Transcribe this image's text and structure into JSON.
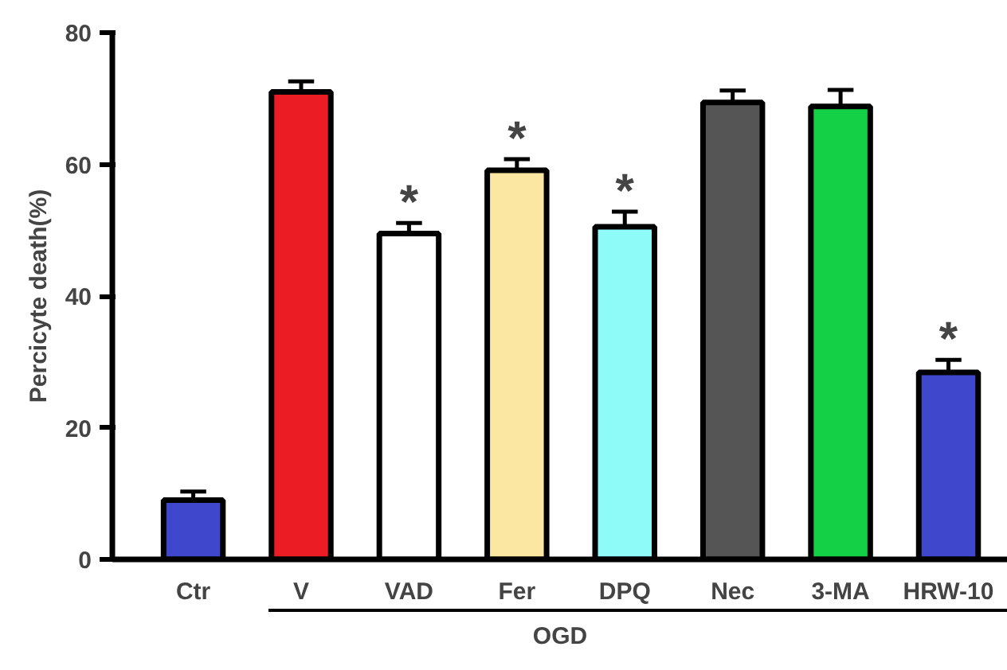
{
  "chart_data": {
    "type": "bar",
    "ylabel": "Percicyte death(%)",
    "categories": [
      "Ctr",
      "V",
      "VAD",
      "Fer",
      "DPQ",
      "Nec",
      "3-MA",
      "HRW-10"
    ],
    "values": [
      9.0,
      71.0,
      49.5,
      59.1,
      50.5,
      69.4,
      68.8,
      28.4
    ],
    "errors": [
      1.3,
      1.6,
      1.6,
      1.7,
      2.3,
      1.8,
      2.5,
      1.9
    ],
    "colors": [
      "#3f48cc",
      "#ec1c24",
      "#ffffff",
      "#fbe7a1",
      "#8ffbf8",
      "#555555",
      "#13d047",
      "#3f48cc"
    ],
    "ylim": [
      0,
      80
    ],
    "yticks": [
      0,
      20,
      40,
      60,
      80
    ],
    "grid": false,
    "annotations": [
      {
        "text": "*",
        "x": "VAD",
        "y": 49.5
      },
      {
        "text": "*",
        "x": "Fer",
        "y": 59.1
      },
      {
        "text": "*",
        "x": "DPQ",
        "y": 50.5
      },
      {
        "text": "*",
        "x": "HRW-10",
        "y": 28.4
      },
      "OGD"
    ]
  }
}
